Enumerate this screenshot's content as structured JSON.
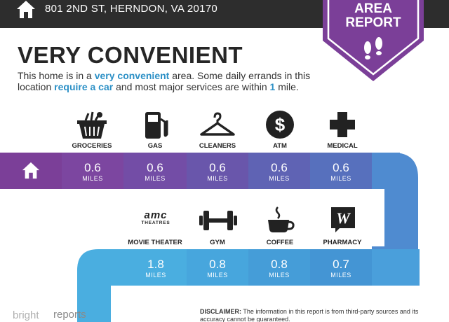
{
  "header": {
    "address": "801 2ND ST, HERNDON, VA 20170",
    "badge_line1": "AREA",
    "badge_line2": "REPORT",
    "home_icon": "home-icon",
    "badge_icon": "footprints-icon"
  },
  "summary": {
    "title": "VERY CONVENIENT",
    "desc_1": "This home is in a ",
    "desc_2": "very convenient",
    "desc_3": " area. Some daily errands in this",
    "desc_4": "location ",
    "desc_5": "require a car",
    "desc_6": " and most major services are within ",
    "desc_7": "1",
    "desc_8": " mile."
  },
  "row1": [
    {
      "label": "GROCERIES",
      "value": "0.6",
      "unit": "MILES",
      "icon": "grocery-basket-icon"
    },
    {
      "label": "GAS",
      "value": "0.6",
      "unit": "MILES",
      "icon": "gas-pump-icon"
    },
    {
      "label": "CLEANERS",
      "value": "0.6",
      "unit": "MILES",
      "icon": "hanger-icon"
    },
    {
      "label": "ATM",
      "value": "0.6",
      "unit": "MILES",
      "icon": "dollar-icon"
    },
    {
      "label": "MEDICAL",
      "value": "0.6",
      "unit": "MILES",
      "icon": "medical-cross-icon"
    }
  ],
  "row2": [
    {
      "label": "MOVIE THEATER",
      "value": "1.8",
      "unit": "MILES",
      "icon": "amc-theatres-logo"
    },
    {
      "label": "GYM",
      "value": "0.8",
      "unit": "MILES",
      "icon": "dumbbell-icon"
    },
    {
      "label": "COFFEE",
      "value": "0.8",
      "unit": "MILES",
      "icon": "coffee-cup-icon"
    },
    {
      "label": "PHARMACY",
      "value": "0.7",
      "unit": "MILES",
      "icon": "walgreens-logo"
    }
  ],
  "logos": {
    "amc_line1": "amc",
    "amc_line2": "THEATRES"
  },
  "footer": {
    "disclaimer_label": "DISCLAIMER:",
    "disclaimer_text": " The information in this report is from third-party sources and its accuracy cannot be guaranteed.",
    "brand_left": "bright",
    "brand_right": "reports"
  },
  "colors": {
    "purple": "#7b3f98",
    "blue": "#4f8bd0",
    "light_blue": "#4aaee0",
    "accent_text": "#2c90c6",
    "dark_bar": "#2d2d2d"
  }
}
